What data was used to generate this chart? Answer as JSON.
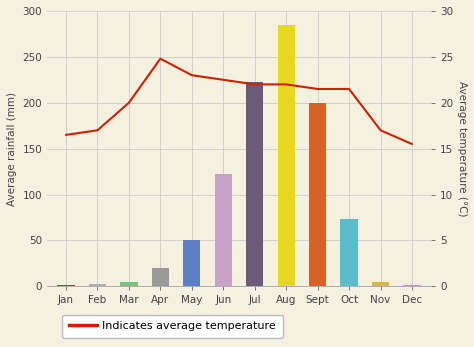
{
  "months": [
    "Jan",
    "Feb",
    "Mar",
    "Apr",
    "May",
    "Jun",
    "Jul",
    "Aug",
    "Sept",
    "Oct",
    "Nov",
    "Dec"
  ],
  "rainfall": [
    1,
    3,
    5,
    20,
    50,
    122,
    223,
    285,
    200,
    73,
    5,
    1
  ],
  "bar_colors": [
    "#c0392b",
    "#b0b0b0",
    "#7dbf7d",
    "#999999",
    "#5b7ec4",
    "#c8a0c8",
    "#6b5b7b",
    "#e8d820",
    "#d4632a",
    "#5bbccc",
    "#d4b84a",
    "#ccaa30"
  ],
  "temperature": [
    16.5,
    17.0,
    20.0,
    24.8,
    23.0,
    22.5,
    22.0,
    22.0,
    21.5,
    21.5,
    17.0,
    15.5
  ],
  "temp_color": "#cc2200",
  "ylabel_left": "Average rainfall (mm)",
  "ylabel_right": "Average temperature (°C)",
  "ylim_left": [
    0,
    300
  ],
  "ylim_right": [
    0,
    30
  ],
  "yticks_left": [
    0,
    50,
    100,
    150,
    200,
    250,
    300
  ],
  "yticks_right": [
    0,
    5,
    10,
    15,
    20,
    25,
    30
  ],
  "grid_color": "#cccccc",
  "bg_color": "#f5f0e0",
  "fig_color": "#f5f0e0",
  "legend_label": "Indicates average temperature",
  "axis_fontsize": 7.5,
  "bar_width": 0.55
}
